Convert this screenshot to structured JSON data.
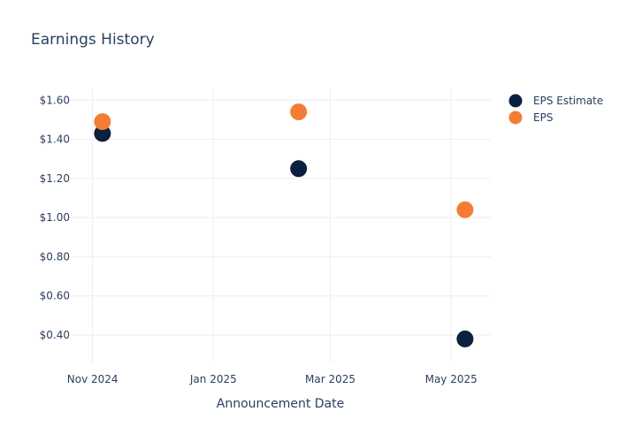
{
  "chart_data": {
    "type": "scatter",
    "title": "Earnings History",
    "xlabel": "Announcement Date",
    "ylabel": "",
    "x_ticks": [
      {
        "date": "2024-11-01",
        "label": "Nov 2024"
      },
      {
        "date": "2025-01-01",
        "label": "Jan 2025"
      },
      {
        "date": "2025-03-01",
        "label": "Mar 2025"
      },
      {
        "date": "2025-05-01",
        "label": "May 2025"
      }
    ],
    "x_range": [
      "2024-10-21",
      "2025-05-21"
    ],
    "y_ticks": [
      {
        "value": 0.4,
        "label": "$0.40"
      },
      {
        "value": 0.6,
        "label": "$0.60"
      },
      {
        "value": 0.8,
        "label": "$0.80"
      },
      {
        "value": 1.0,
        "label": "$1.00"
      },
      {
        "value": 1.2,
        "label": "$1.20"
      },
      {
        "value": 1.4,
        "label": "$1.40"
      },
      {
        "value": 1.6,
        "label": "$1.60"
      }
    ],
    "ylim": [
      0.26,
      1.66
    ],
    "grid": true,
    "legend_position": "top-right",
    "series": [
      {
        "name": "EPS Estimate",
        "color": "#0b1f3f",
        "points": [
          {
            "x": "2024-11-06",
            "y": 1.43
          },
          {
            "x": "2025-02-13",
            "y": 1.25
          },
          {
            "x": "2025-05-08",
            "y": 0.38
          }
        ]
      },
      {
        "name": "EPS",
        "color": "#f47d35",
        "points": [
          {
            "x": "2024-11-06",
            "y": 1.49
          },
          {
            "x": "2025-02-13",
            "y": 1.54
          },
          {
            "x": "2025-05-08",
            "y": 1.04
          }
        ]
      }
    ]
  }
}
